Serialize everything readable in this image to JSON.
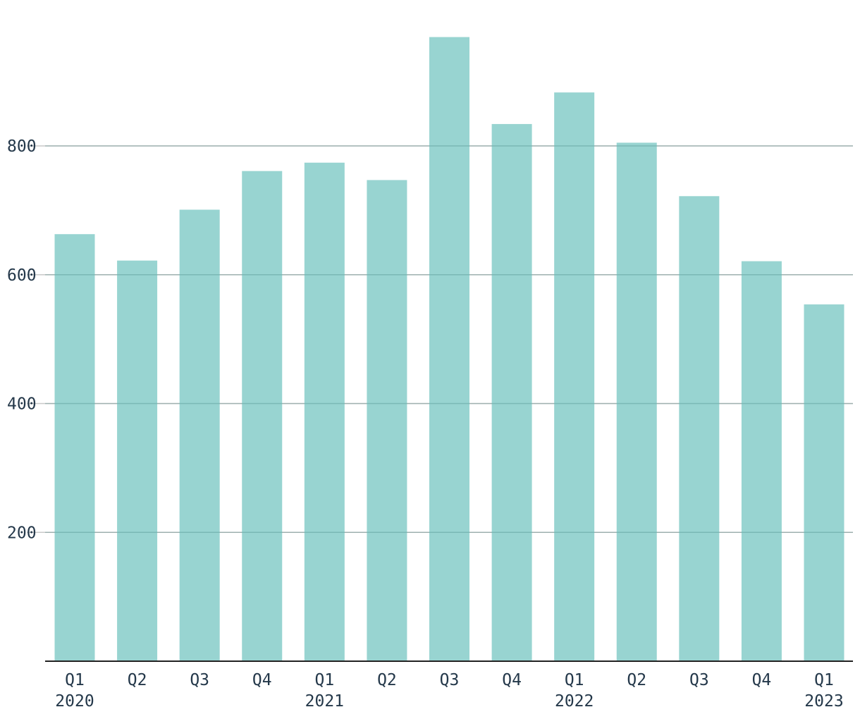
{
  "chart_data": {
    "type": "bar",
    "title": "",
    "xlabel": "",
    "ylabel": "",
    "categories": [
      "Q1",
      "Q2",
      "Q3",
      "Q4",
      "Q1",
      "Q2",
      "Q3",
      "Q4",
      "Q1",
      "Q2",
      "Q3",
      "Q4",
      "Q1"
    ],
    "year_labels": [
      "2020",
      "",
      "",
      "",
      "2021",
      "",
      "",
      "",
      "2022",
      "",
      "",
      "",
      "2023"
    ],
    "values": [
      663,
      622,
      701,
      761,
      774,
      747,
      969,
      834,
      883,
      805,
      722,
      621,
      554
    ],
    "ylim": [
      0,
      980
    ],
    "yticks": [
      200,
      400,
      600,
      800
    ],
    "grid": true,
    "colors": {
      "bar": "#98d4d1",
      "grid": "#c9c9c9",
      "axis": "#222222",
      "text": "#24384a"
    }
  }
}
